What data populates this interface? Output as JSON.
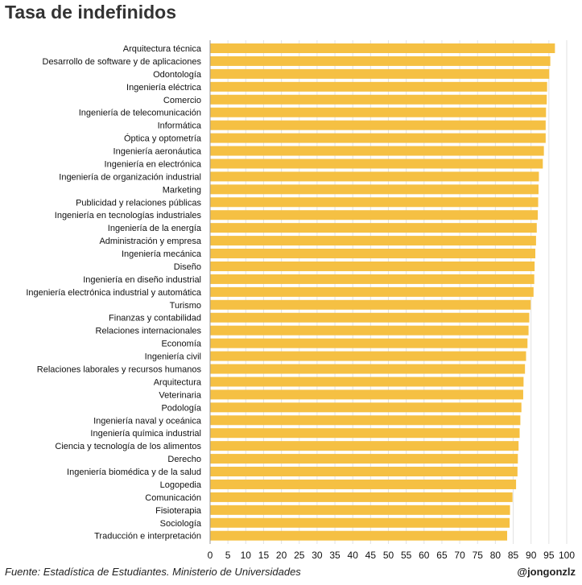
{
  "title": "Tasa de indefinidos",
  "source": "Fuente: Estadística de Estudiantes. Ministerio de Universidades",
  "handle": "@jongonzlz",
  "colors": {
    "bar": "#F5C043",
    "gridline": "#E2E2E2",
    "axis": "#999999"
  },
  "chart_data": {
    "type": "bar",
    "orientation": "horizontal",
    "title": "Tasa de indefinidos",
    "xlabel": "",
    "ylabel": "",
    "xlim": [
      0,
      100
    ],
    "xticks": [
      0,
      5,
      10,
      15,
      20,
      25,
      30,
      35,
      40,
      45,
      50,
      55,
      60,
      65,
      70,
      75,
      80,
      85,
      90,
      95,
      100
    ],
    "grid": "vertical",
    "categories": [
      "Arquitectura técnica",
      "Desarrollo de software y de aplicaciones",
      "Odontología",
      "Ingeniería eléctrica",
      "Comercio",
      "Ingeniería de telecomunicación",
      "Informática",
      "Óptica y optometría",
      "Ingeniería aeronáutica",
      "Ingeniería en electrónica",
      "Ingeniería de organización industrial",
      "Marketing",
      "Publicidad y relaciones públicas",
      "Ingeniería en tecnologías industriales",
      "Ingeniería de la energía",
      "Administración y empresa",
      "Ingeniería mecánica",
      "Diseño",
      "Ingeniería en diseño industrial",
      "Ingeniería electrónica industrial y automática",
      "Turismo",
      "Finanzas y contabilidad",
      "Relaciones internacionales",
      "Economía",
      "Ingeniería civil",
      "Relaciones laborales y recursos humanos",
      "Arquitectura",
      "Veterinaria",
      "Podología",
      "Ingeniería naval y oceánica",
      "Ingeniería química industrial",
      "Ciencia y tecnología de los alimentos",
      "Derecho",
      "Ingeniería biomédica y de la salud",
      "Logopedia",
      "Comunicación",
      "Fisioterapia",
      "Sociología",
      "Traducción e interpretación"
    ],
    "values": [
      96.7,
      95.4,
      95.1,
      94.5,
      94.4,
      94.2,
      94.1,
      94.1,
      93.6,
      93.3,
      92.2,
      92.1,
      92.0,
      91.9,
      91.6,
      91.4,
      91.2,
      91.0,
      90.9,
      90.7,
      89.9,
      89.5,
      89.3,
      89.0,
      88.6,
      88.3,
      87.9,
      87.8,
      87.3,
      87.0,
      86.8,
      86.5,
      86.3,
      86.2,
      85.8,
      84.8,
      84.1,
      84.0,
      83.3
    ]
  }
}
